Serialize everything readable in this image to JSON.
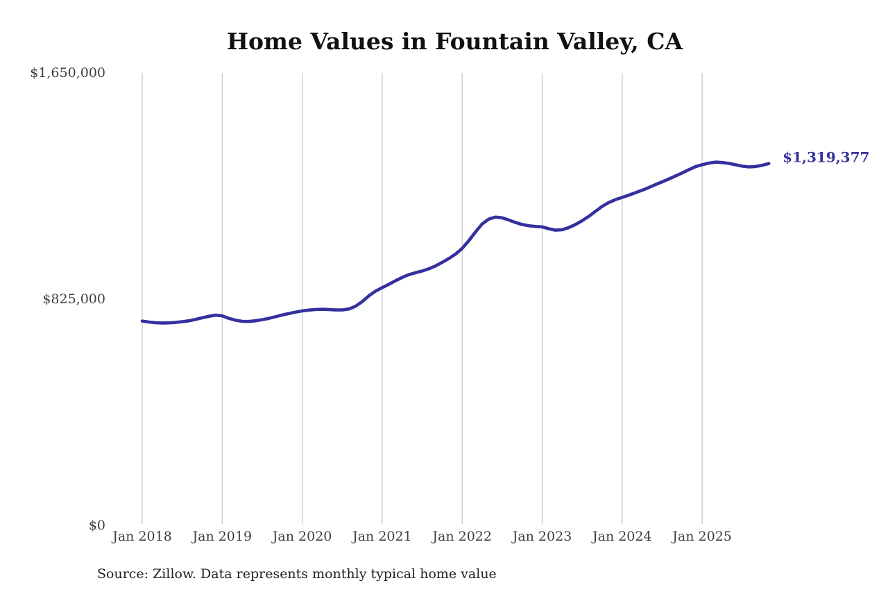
{
  "chart_data": {
    "type": "line",
    "title": "Home Values in Fountain Valley, CA",
    "source_note": "Source: Zillow. Data represents monthly typical home value",
    "end_value_label": "$1,319,377",
    "final_value": 1319377,
    "ylabel": "",
    "xlabel": "",
    "ylim": [
      0,
      1650000
    ],
    "grid": "vertical-only",
    "legend": "none",
    "x_start_month": "Jan 2018",
    "x_end_month": "Nov 2025",
    "points_per_year": 12,
    "x_tick_labels": [
      "Jan 2018",
      "Jan 2019",
      "Jan 2020",
      "Jan 2021",
      "Jan 2022",
      "Jan 2023",
      "Jan 2024",
      "Jan 2025"
    ],
    "y_ticks": [
      {
        "value": 0,
        "label": "$0"
      },
      {
        "value": 825000,
        "label": "$825,000"
      },
      {
        "value": 1650000,
        "label": "$1,650,000"
      }
    ],
    "series": [
      {
        "name": "Monthly typical home value",
        "values": [
          745000,
          741500,
          739000,
          738000,
          738500,
          740000,
          742500,
          746000,
          751000,
          757000,
          762500,
          766500,
          764000,
          755000,
          748000,
          744000,
          743500,
          746000,
          750000,
          755000,
          761000,
          767000,
          772500,
          777500,
          782000,
          785000,
          787000,
          788000,
          787000,
          785500,
          785500,
          789000,
          799000,
          816000,
          837000,
          854000,
          867000,
          879000,
          892000,
          904000,
          914000,
          921500,
          927500,
          935500,
          946000,
          959000,
          973000,
          989000,
          1010000,
          1038000,
          1070000,
          1099000,
          1117000,
          1124000,
          1121500,
          1113500,
          1104500,
          1097000,
          1092500,
          1090000,
          1088500,
          1081500,
          1076500,
          1078000,
          1086000,
          1097000,
          1111000,
          1127000,
          1145500,
          1163000,
          1177500,
          1188000,
          1196000,
          1204000,
          1213000,
          1222000,
          1232000,
          1242500,
          1252500,
          1263000,
          1274000,
          1285000,
          1297000,
          1308000,
          1315000,
          1321000,
          1324500,
          1323000,
          1320000,
          1315000,
          1310000,
          1307000,
          1308500,
          1313000,
          1319377
        ]
      }
    ]
  },
  "colors": {
    "line": "#35309e",
    "end_label": "#35309e",
    "grid": "#c9c9c9",
    "tick_text": "#3d3d3d",
    "title_text": "#111111",
    "source_text": "#222222",
    "background": "#ffffff"
  }
}
